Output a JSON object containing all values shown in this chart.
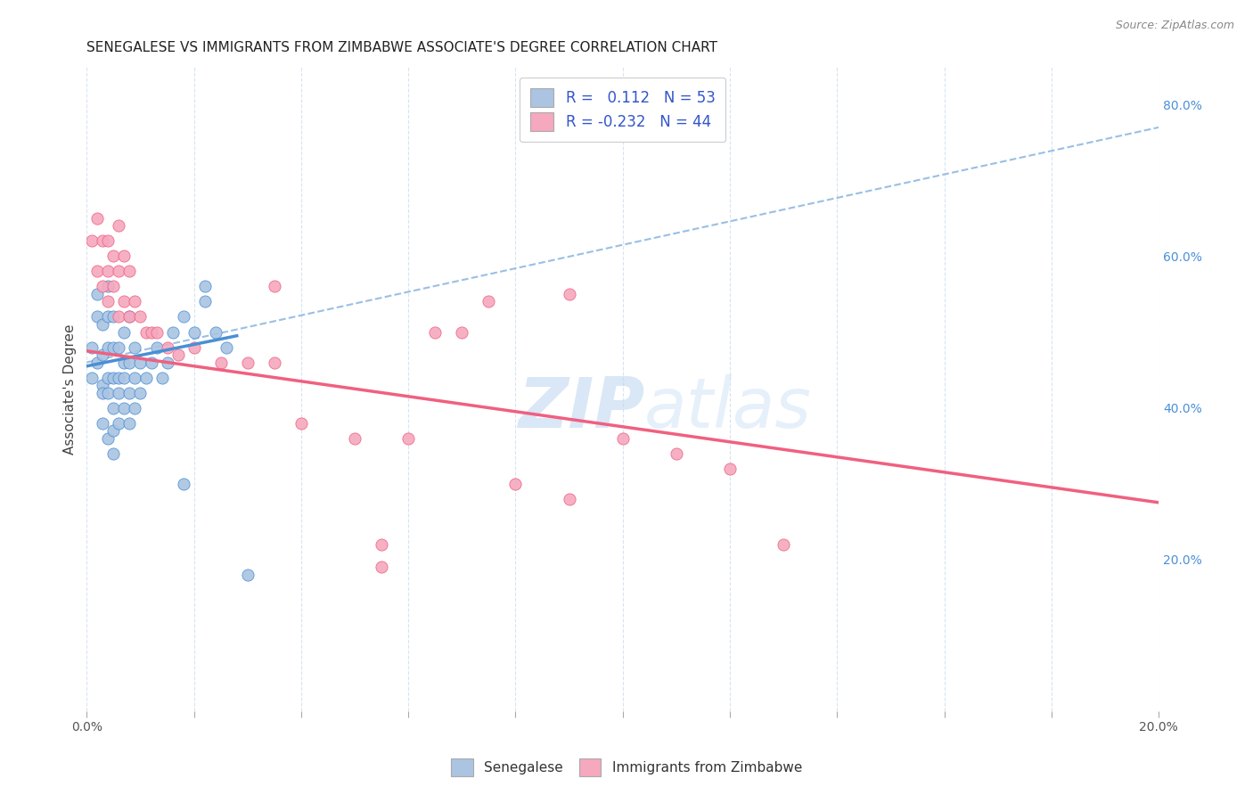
{
  "title": "SENEGALESE VS IMMIGRANTS FROM ZIMBABWE ASSOCIATE'S DEGREE CORRELATION CHART",
  "source": "Source: ZipAtlas.com",
  "ylabel": "Associate's Degree",
  "xlim": [
    0.0,
    0.2
  ],
  "ylim": [
    0.0,
    0.85
  ],
  "y_ticks_right": [
    0.2,
    0.4,
    0.6,
    0.8
  ],
  "y_tick_labels_right": [
    "20.0%",
    "40.0%",
    "60.0%",
    "80.0%"
  ],
  "blue_color": "#aac4e2",
  "pink_color": "#f5a8be",
  "blue_line_color": "#4a8fd4",
  "pink_line_color": "#f06080",
  "dashed_line_color": "#90b8e0",
  "watermark_zip": "ZIP",
  "watermark_atlas": "atlas",
  "background_color": "#ffffff",
  "grid_color": "#d8e4f0",
  "title_fontsize": 11,
  "axis_label_fontsize": 11,
  "tick_fontsize": 10,
  "legend_fontsize": 12,
  "senegalese_x": [
    0.001,
    0.001,
    0.002,
    0.002,
    0.002,
    0.003,
    0.003,
    0.003,
    0.003,
    0.003,
    0.004,
    0.004,
    0.004,
    0.004,
    0.004,
    0.004,
    0.005,
    0.005,
    0.005,
    0.005,
    0.005,
    0.005,
    0.006,
    0.006,
    0.006,
    0.006,
    0.007,
    0.007,
    0.007,
    0.007,
    0.008,
    0.008,
    0.008,
    0.008,
    0.009,
    0.009,
    0.009,
    0.01,
    0.01,
    0.011,
    0.012,
    0.013,
    0.014,
    0.015,
    0.016,
    0.018,
    0.02,
    0.022,
    0.024,
    0.026,
    0.03,
    0.018,
    0.022
  ],
  "senegalese_y": [
    0.44,
    0.48,
    0.52,
    0.55,
    0.46,
    0.43,
    0.47,
    0.51,
    0.42,
    0.38,
    0.44,
    0.48,
    0.52,
    0.56,
    0.42,
    0.36,
    0.44,
    0.48,
    0.52,
    0.4,
    0.37,
    0.34,
    0.44,
    0.48,
    0.42,
    0.38,
    0.46,
    0.5,
    0.44,
    0.4,
    0.46,
    0.42,
    0.38,
    0.52,
    0.44,
    0.48,
    0.4,
    0.46,
    0.42,
    0.44,
    0.46,
    0.48,
    0.44,
    0.46,
    0.5,
    0.52,
    0.5,
    0.54,
    0.5,
    0.48,
    0.18,
    0.3,
    0.56
  ],
  "zimbabwe_x": [
    0.001,
    0.002,
    0.002,
    0.003,
    0.003,
    0.004,
    0.004,
    0.004,
    0.005,
    0.005,
    0.006,
    0.006,
    0.006,
    0.007,
    0.007,
    0.008,
    0.008,
    0.009,
    0.01,
    0.011,
    0.012,
    0.013,
    0.015,
    0.017,
    0.02,
    0.025,
    0.03,
    0.035,
    0.04,
    0.05,
    0.06,
    0.065,
    0.07,
    0.075,
    0.08,
    0.09,
    0.1,
    0.11,
    0.12,
    0.13,
    0.035,
    0.055,
    0.09,
    0.055
  ],
  "zimbabwe_y": [
    0.62,
    0.65,
    0.58,
    0.62,
    0.56,
    0.58,
    0.54,
    0.62,
    0.6,
    0.56,
    0.52,
    0.58,
    0.64,
    0.54,
    0.6,
    0.52,
    0.58,
    0.54,
    0.52,
    0.5,
    0.5,
    0.5,
    0.48,
    0.47,
    0.48,
    0.46,
    0.46,
    0.46,
    0.38,
    0.36,
    0.36,
    0.5,
    0.5,
    0.54,
    0.3,
    0.28,
    0.36,
    0.34,
    0.32,
    0.22,
    0.56,
    0.22,
    0.55,
    0.19
  ],
  "blue_line_x": [
    0.0,
    0.028
  ],
  "blue_line_y": [
    0.455,
    0.495
  ],
  "pink_line_x": [
    0.0,
    0.2
  ],
  "pink_line_y": [
    0.475,
    0.275
  ],
  "dashed_line_x": [
    0.0,
    0.2
  ],
  "dashed_line_y": [
    0.46,
    0.77
  ]
}
